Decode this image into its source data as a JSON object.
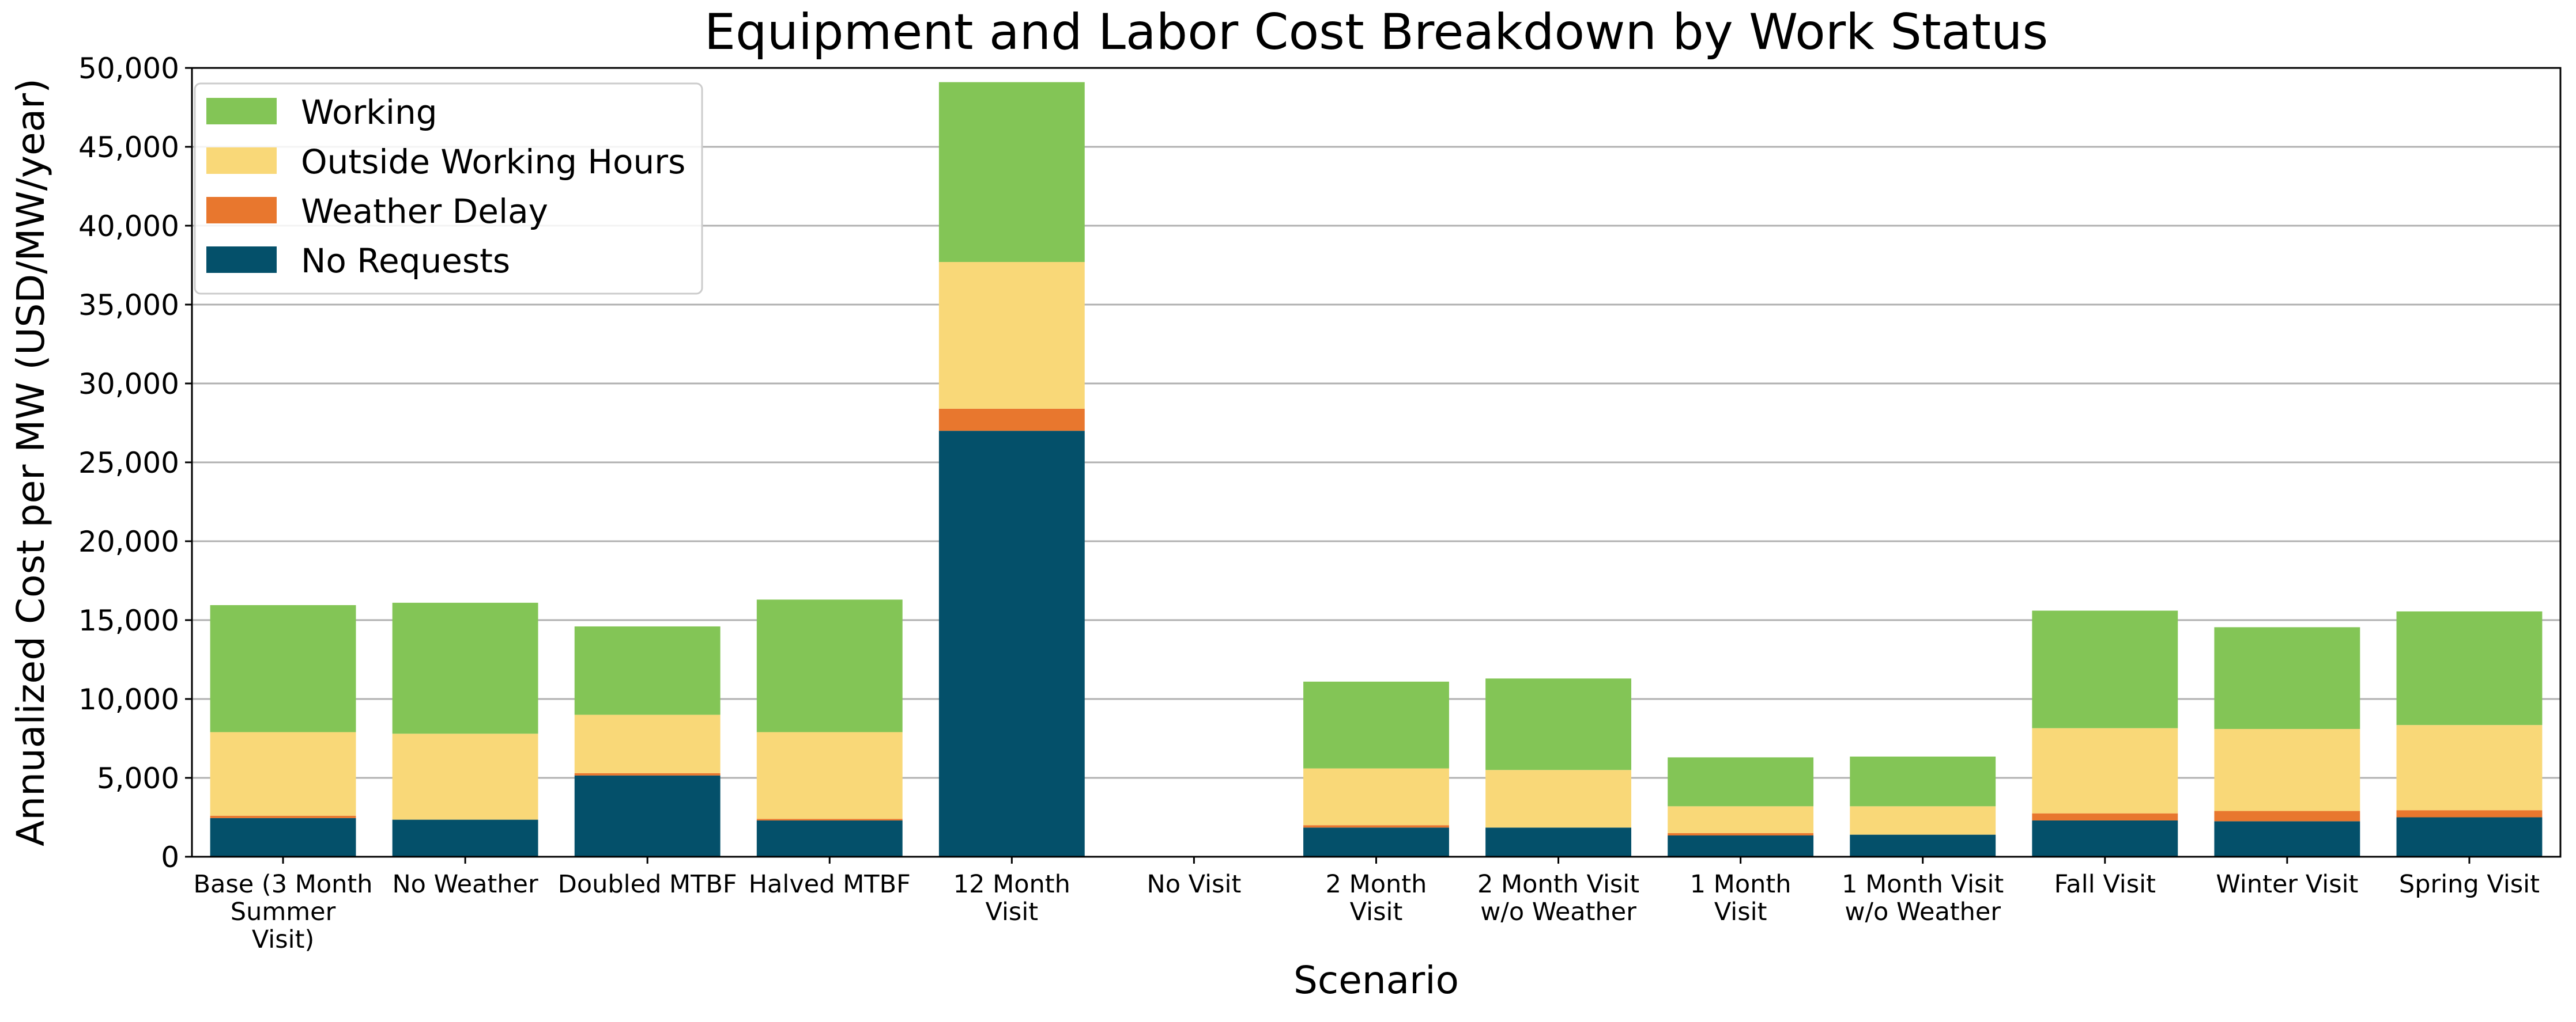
{
  "chart_data": {
    "type": "bar",
    "stacked": true,
    "title": "Equipment and Labor Cost Breakdown by Work Status",
    "xlabel": "Scenario",
    "ylabel": "Annualized Cost per MW (USD/MW/year)",
    "ylim": [
      0,
      50000
    ],
    "yticks": [
      0,
      5000,
      10000,
      15000,
      20000,
      25000,
      30000,
      35000,
      40000,
      45000,
      50000
    ],
    "ytick_labels": [
      "0",
      "5,000",
      "10,000",
      "15,000",
      "20,000",
      "25,000",
      "30,000",
      "35,000",
      "40,000",
      "45,000",
      "50,000"
    ],
    "grid": "horizontal",
    "legend_position": "top-left",
    "categories": [
      [
        "Base (3 Month",
        "Summer",
        "Visit)"
      ],
      [
        "No Weather"
      ],
      [
        "Doubled MTBF"
      ],
      [
        "Halved MTBF"
      ],
      [
        "12 Month",
        "Visit"
      ],
      [
        "No Visit"
      ],
      [
        "2 Month",
        "Visit"
      ],
      [
        "2 Month Visit",
        "w/o Weather"
      ],
      [
        "1 Month",
        "Visit"
      ],
      [
        "1 Month Visit",
        "w/o Weather"
      ],
      [
        "Fall Visit"
      ],
      [
        "Winter Visit"
      ],
      [
        "Spring Visit"
      ]
    ],
    "series": [
      {
        "name": "No Requests",
        "color": "#04506a",
        "values": [
          2450,
          2350,
          5150,
          2300,
          27000,
          0,
          1850,
          1850,
          1350,
          1400,
          2300,
          2250,
          2500
        ]
      },
      {
        "name": "Weather Delay",
        "color": "#e8772e",
        "values": [
          150,
          0,
          150,
          100,
          1400,
          0,
          150,
          0,
          150,
          0,
          450,
          650,
          450
        ]
      },
      {
        "name": "Outside Working Hours",
        "color": "#f9d878",
        "values": [
          5300,
          5450,
          3700,
          5500,
          9300,
          0,
          3600,
          3650,
          1700,
          1800,
          5400,
          5200,
          5400
        ]
      },
      {
        "name": "Working",
        "color": "#83c556",
        "values": [
          8050,
          8300,
          5600,
          8400,
          11400,
          0,
          5500,
          5800,
          3100,
          3150,
          7450,
          6450,
          7200
        ]
      }
    ],
    "legend_order": [
      "Working",
      "Outside Working Hours",
      "Weather Delay",
      "No Requests"
    ]
  }
}
